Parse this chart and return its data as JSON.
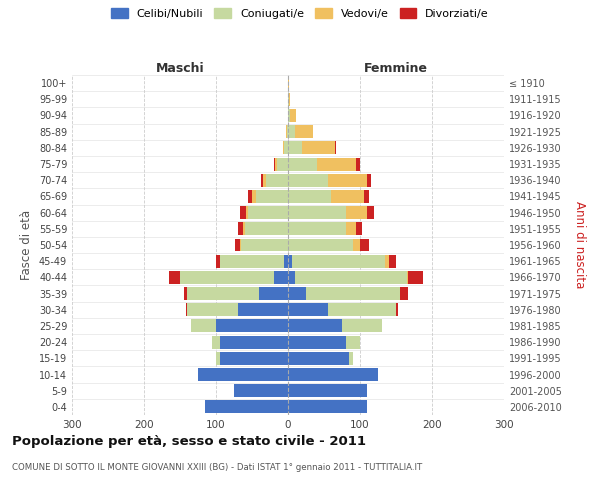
{
  "age_groups": [
    "0-4",
    "5-9",
    "10-14",
    "15-19",
    "20-24",
    "25-29",
    "30-34",
    "35-39",
    "40-44",
    "45-49",
    "50-54",
    "55-59",
    "60-64",
    "65-69",
    "70-74",
    "75-79",
    "80-84",
    "85-89",
    "90-94",
    "95-99",
    "100+"
  ],
  "birth_years": [
    "2006-2010",
    "2001-2005",
    "1996-2000",
    "1991-1995",
    "1986-1990",
    "1981-1985",
    "1976-1980",
    "1971-1975",
    "1966-1970",
    "1961-1965",
    "1956-1960",
    "1951-1955",
    "1946-1950",
    "1941-1945",
    "1936-1940",
    "1931-1935",
    "1926-1930",
    "1921-1925",
    "1916-1920",
    "1911-1915",
    "≤ 1910"
  ],
  "male": {
    "celibi": [
      115,
      75,
      125,
      95,
      95,
      100,
      70,
      40,
      20,
      5,
      0,
      0,
      0,
      0,
      0,
      0,
      0,
      0,
      0,
      0,
      0
    ],
    "coniugati": [
      0,
      0,
      0,
      5,
      10,
      35,
      70,
      100,
      130,
      90,
      65,
      60,
      55,
      45,
      30,
      15,
      5,
      2,
      0,
      0,
      0
    ],
    "vedovi": [
      0,
      0,
      0,
      0,
      0,
      0,
      0,
      0,
      0,
      0,
      1,
      2,
      3,
      5,
      5,
      3,
      2,
      1,
      0,
      0,
      0
    ],
    "divorziati": [
      0,
      0,
      0,
      0,
      0,
      0,
      2,
      5,
      15,
      5,
      7,
      8,
      8,
      5,
      2,
      2,
      0,
      0,
      0,
      0,
      0
    ]
  },
  "female": {
    "nubili": [
      110,
      110,
      125,
      85,
      80,
      75,
      55,
      25,
      10,
      5,
      0,
      0,
      0,
      0,
      0,
      0,
      0,
      0,
      0,
      0,
      0
    ],
    "coniugate": [
      0,
      0,
      0,
      5,
      20,
      55,
      95,
      130,
      155,
      130,
      90,
      80,
      80,
      60,
      55,
      40,
      20,
      10,
      3,
      1,
      0
    ],
    "vedove": [
      0,
      0,
      0,
      0,
      0,
      0,
      0,
      1,
      2,
      5,
      10,
      15,
      30,
      45,
      55,
      55,
      45,
      25,
      8,
      2,
      1
    ],
    "divorziate": [
      0,
      0,
      0,
      0,
      0,
      1,
      3,
      10,
      20,
      10,
      12,
      8,
      10,
      8,
      5,
      5,
      1,
      0,
      0,
      0,
      0
    ]
  },
  "colors": {
    "celibi": "#4472c4",
    "coniugati": "#c6d9a0",
    "vedovi": "#f0c060",
    "divorziati": "#cc2222"
  },
  "xlim": 300,
  "title": "Popolazione per età, sesso e stato civile - 2011",
  "subtitle": "COMUNE DI SOTTO IL MONTE GIOVANNI XXIII (BG) - Dati ISTAT 1° gennaio 2011 - TUTTITALIA.IT",
  "xlabel_left": "Maschi",
  "xlabel_right": "Femmine",
  "ylabel_left": "Fasce di età",
  "ylabel_right": "Anni di nascita",
  "background_color": "#ffffff"
}
